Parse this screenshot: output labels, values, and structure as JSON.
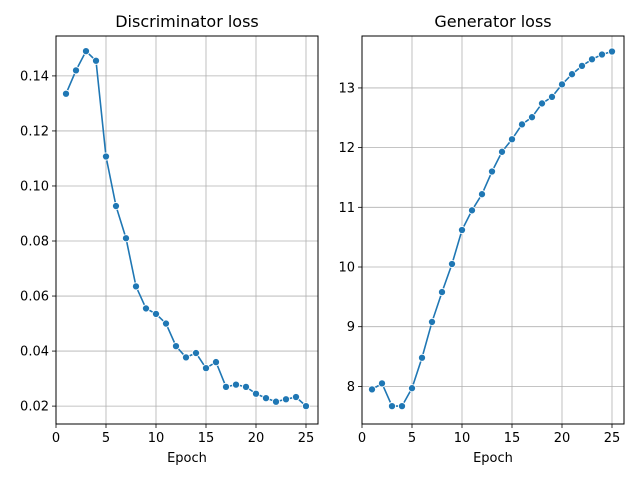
{
  "chart_data": [
    {
      "type": "line",
      "title": "Discriminator loss",
      "xlabel": "Epoch",
      "ylabel": "",
      "xlim": [
        0,
        26.2
      ],
      "ylim": [
        0.0135,
        0.1545
      ],
      "xticks": [
        0,
        5,
        10,
        15,
        20,
        25
      ],
      "yticks": [
        0.02,
        0.04,
        0.06,
        0.08,
        0.1,
        0.12,
        0.14
      ],
      "ytick_labels": [
        "0.02",
        "0.04",
        "0.06",
        "0.08",
        "0.10",
        "0.12",
        "0.14"
      ],
      "grid": true,
      "color": "#1f77b4",
      "x": [
        1,
        2,
        3,
        4,
        5,
        6,
        7,
        8,
        9,
        10,
        11,
        12,
        13,
        14,
        15,
        16,
        17,
        18,
        19,
        20,
        21,
        22,
        23,
        24,
        25
      ],
      "y": [
        0.1335,
        0.142,
        0.149,
        0.1455,
        0.1107,
        0.0927,
        0.081,
        0.0635,
        0.0555,
        0.0535,
        0.05,
        0.0418,
        0.0377,
        0.0393,
        0.0338,
        0.036,
        0.027,
        0.0278,
        0.027,
        0.0245,
        0.0229,
        0.0216,
        0.0225,
        0.0233,
        0.02
      ]
    },
    {
      "type": "line",
      "title": "Generator loss",
      "xlabel": "Epoch",
      "ylabel": "",
      "xlim": [
        0,
        26.2
      ],
      "ylim": [
        7.37,
        13.87
      ],
      "xticks": [
        0,
        5,
        10,
        15,
        20,
        25
      ],
      "yticks": [
        8,
        9,
        10,
        11,
        12,
        13
      ],
      "ytick_labels": [
        "8",
        "9",
        "10",
        "11",
        "12",
        "13"
      ],
      "grid": true,
      "color": "#1f77b4",
      "x": [
        1,
        2,
        3,
        4,
        5,
        6,
        7,
        8,
        9,
        10,
        11,
        12,
        13,
        14,
        15,
        16,
        17,
        18,
        19,
        20,
        21,
        22,
        23,
        24,
        25
      ],
      "y": [
        7.95,
        8.05,
        7.67,
        7.67,
        7.97,
        8.48,
        9.08,
        9.58,
        10.05,
        10.62,
        10.95,
        11.22,
        11.6,
        11.93,
        12.14,
        12.39,
        12.51,
        12.74,
        12.85,
        13.06,
        13.23,
        13.37,
        13.48,
        13.56,
        13.61
      ]
    }
  ]
}
